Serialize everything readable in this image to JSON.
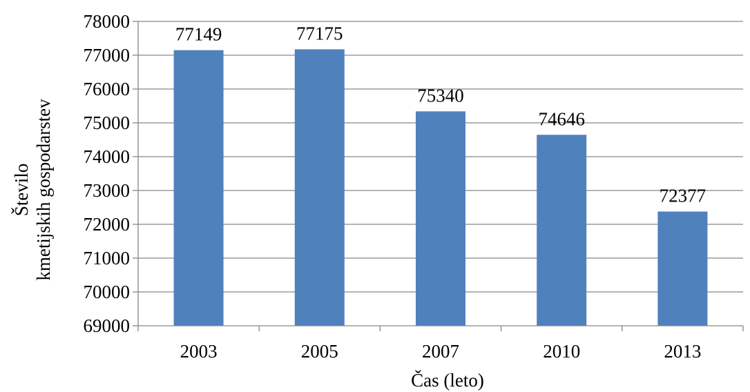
{
  "chart_data": {
    "type": "bar",
    "categories": [
      "2003",
      "2005",
      "2007",
      "2010",
      "2013"
    ],
    "values": [
      77149,
      77175,
      75340,
      74646,
      72377
    ],
    "data_labels": [
      "77149",
      "77175",
      "75340",
      "74646",
      "72377"
    ],
    "xlabel": "Čas (leto)",
    "ylabel_lines": [
      "Število",
      "kmetijskih gospodarstev"
    ],
    "ylim": [
      69000,
      78000
    ],
    "y_ticks": [
      69000,
      70000,
      71000,
      72000,
      73000,
      74000,
      75000,
      76000,
      77000,
      78000
    ],
    "grid": true,
    "legend": "none",
    "colors": {
      "bar": "#4F81BD",
      "grid": "#868686",
      "axis": "#868686"
    }
  }
}
